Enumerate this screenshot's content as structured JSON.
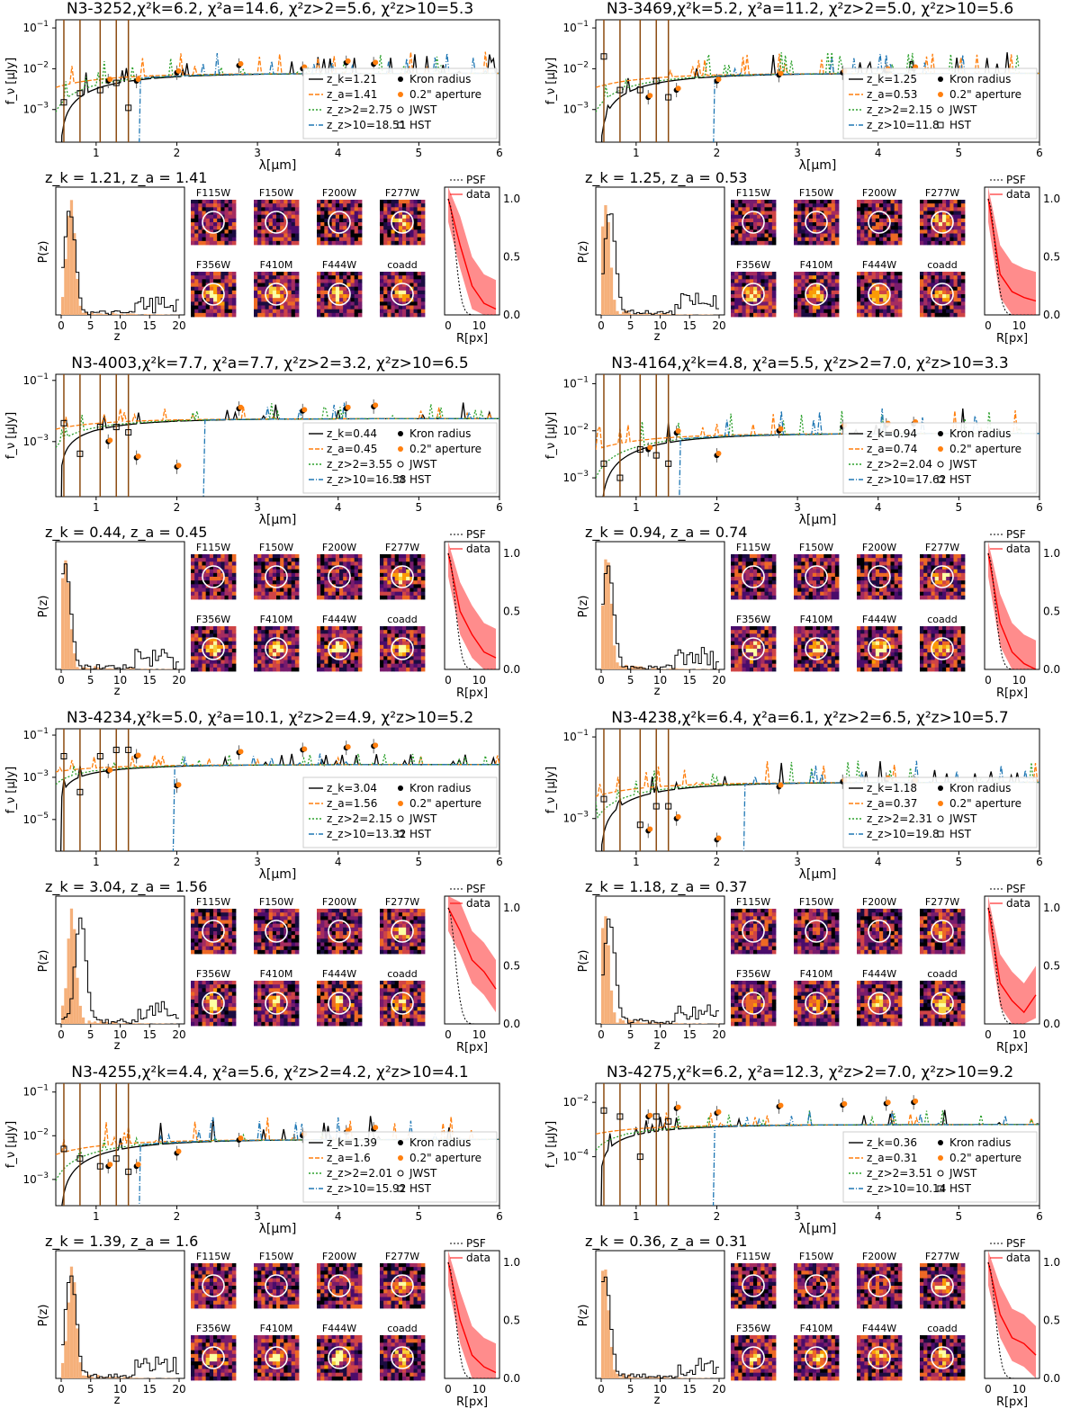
{
  "figure": {
    "axis_labels": {
      "sed_y": "f_ν [μJy]",
      "sed_x": "λ[μm]",
      "pz_y": "P(z)",
      "pz_x": "z",
      "radial_x": "R[px]"
    },
    "legend": {
      "kron": "Kron radius",
      "aperture": "0.2\" aperture",
      "jwst": "JWST",
      "hst": "HST",
      "psf": "PSF",
      "data": "data"
    },
    "filters": [
      "F115W",
      "F150W",
      "F200W",
      "F277W",
      "F356W",
      "F410M",
      "F444W",
      "coadd"
    ],
    "colors": {
      "zk": "#000000",
      "za": "#ff7f0e",
      "zgt2": "#2ca02c",
      "zgt10": "#1f77b4",
      "hst_err": "#8c4b10",
      "radial": "#ff0000",
      "pz_fill": "#f5b07a"
    }
  },
  "chart_data": [
    {
      "type": "line",
      "id": "N3-3252",
      "title": "N3-3252,χ²k=6.2, χ²a=14.6, χ²z>2=5.6, χ²z>10=5.3",
      "chi2": {
        "k": 6.2,
        "a": 14.6,
        "z_gt2": 5.6,
        "z_gt10": 5.3
      },
      "z_k": 1.21,
      "z_a": 1.41,
      "z_gt2": 2.75,
      "z_gt10": 18.51,
      "legend_values": [
        "z_k=1.21",
        "z_a=1.41",
        "z_z>2=2.75",
        "z_z>10=18.51"
      ],
      "zline": "z_k = 1.21, z_a = 1.41",
      "ylim_log10": [
        -3.8,
        -0.8
      ],
      "yticks_log10": [
        -3,
        -2,
        -1
      ],
      "xlim": [
        0.5,
        6
      ],
      "jwst_points": [
        [
          1.15,
          0.005
        ],
        [
          1.5,
          0.005
        ],
        [
          2.0,
          0.008
        ],
        [
          2.77,
          0.012
        ],
        [
          3.56,
          0.01
        ],
        [
          4.1,
          0.014
        ],
        [
          4.44,
          0.013
        ]
      ],
      "hst_points": [
        [
          0.6,
          0.0015
        ],
        [
          0.8,
          0.0025
        ],
        [
          1.05,
          0.003
        ],
        [
          1.25,
          0.0045
        ],
        [
          1.4,
          0.0011
        ]
      ],
      "radial_data": [
        1.0,
        0.6,
        0.25,
        0.1,
        0.05
      ]
    },
    {
      "type": "line",
      "id": "N3-3469",
      "title": "N3-3469,χ²k=5.2, χ²a=11.2, χ²z>2=5.0, χ²z>10=5.6",
      "chi2": {
        "k": 5.2,
        "a": 11.2,
        "z_gt2": 5.0,
        "z_gt10": 5.6
      },
      "z_k": 1.25,
      "z_a": 0.53,
      "z_gt2": 2.15,
      "z_gt10": 11.8,
      "legend_values": [
        "z_k=1.25",
        "z_a=0.53",
        "z_z>2=2.15",
        "z_z>10=11.8"
      ],
      "zline": "z_k = 1.25, z_a = 0.53",
      "ylim_log10": [
        -3.8,
        -0.8
      ],
      "yticks_log10": [
        -3,
        -2,
        -1
      ],
      "xlim": [
        0.5,
        6
      ],
      "jwst_points": [
        [
          1.15,
          0.002
        ],
        [
          1.5,
          0.003
        ],
        [
          2.0,
          0.005
        ],
        [
          2.77,
          0.007
        ],
        [
          3.56,
          0.008
        ],
        [
          4.1,
          0.009
        ],
        [
          4.44,
          0.01
        ]
      ],
      "hst_points": [
        [
          0.6,
          0.02
        ],
        [
          0.8,
          0.003
        ],
        [
          1.05,
          0.003
        ],
        [
          1.25,
          0.005
        ],
        [
          1.4,
          0.002
        ]
      ],
      "radial_data": [
        1.0,
        0.35,
        0.2,
        0.15,
        0.12
      ]
    },
    {
      "type": "line",
      "id": "N3-4003",
      "title": "N3-4003,χ²k=7.7, χ²a=7.7, χ²z>2=3.2, χ²z>10=6.5",
      "chi2": {
        "k": 7.7,
        "a": 7.7,
        "z_gt2": 3.2,
        "z_gt10": 6.5
      },
      "z_k": 0.44,
      "z_a": 0.45,
      "z_gt2": 3.55,
      "z_gt10": 16.58,
      "legend_values": [
        "z_k=0.44",
        "z_a=0.45",
        "z_z>2=3.55",
        "z_z>10=16.58"
      ],
      "zline": "z_k = 0.44, z_a = 0.45",
      "ylim_log10": [
        -4.8,
        -0.8
      ],
      "yticks_log10": [
        -3,
        -1
      ],
      "xlim": [
        0.5,
        6
      ],
      "jwst_points": [
        [
          1.15,
          0.001
        ],
        [
          1.5,
          0.0003
        ],
        [
          2.0,
          0.00015
        ],
        [
          2.77,
          0.012
        ],
        [
          3.56,
          0.01
        ],
        [
          4.1,
          0.012
        ],
        [
          4.44,
          0.014
        ]
      ],
      "hst_points": [
        [
          0.6,
          0.004
        ],
        [
          0.8,
          0.0004
        ],
        [
          1.05,
          0.003
        ],
        [
          1.25,
          0.003
        ],
        [
          1.4,
          0.002
        ]
      ],
      "radial_data": [
        1.0,
        0.5,
        0.3,
        0.15,
        0.1
      ]
    },
    {
      "type": "line",
      "id": "N3-4164",
      "title": "N3-4164,χ²k=4.8, χ²a=5.5, χ²z>2=7.0, χ²z>10=3.3",
      "chi2": {
        "k": 4.8,
        "a": 5.5,
        "z_gt2": 7.0,
        "z_gt10": 3.3
      },
      "z_k": 0.94,
      "z_a": 0.74,
      "z_gt2": 2.04,
      "z_gt10": 17.62,
      "legend_values": [
        "z_k=0.94",
        "z_a=0.74",
        "z_z>2=2.04",
        "z_z>10=17.62"
      ],
      "zline": "z_k = 0.94, z_a = 0.74",
      "ylim_log10": [
        -3.4,
        -0.8
      ],
      "yticks_log10": [
        -3,
        -2,
        -1
      ],
      "xlim": [
        0.5,
        6
      ],
      "jwst_points": [
        [
          1.15,
          0.004
        ],
        [
          1.5,
          0.009
        ],
        [
          2.0,
          0.003
        ],
        [
          2.77,
          0.01
        ],
        [
          3.56,
          0.012
        ],
        [
          4.1,
          0.013
        ],
        [
          4.44,
          0.014
        ]
      ],
      "hst_points": [
        [
          0.6,
          0.002
        ],
        [
          0.8,
          0.001
        ],
        [
          1.05,
          0.004
        ],
        [
          1.25,
          0.003
        ],
        [
          1.4,
          0.002
        ]
      ],
      "radial_data": [
        1.0,
        0.4,
        0.15,
        0.05,
        0.0
      ]
    },
    {
      "type": "line",
      "id": "N3-4234",
      "title": "N3-4234,χ²k=5.0, χ²a=10.1, χ²z>2=4.9, χ²z>10=5.2",
      "chi2": {
        "k": 5.0,
        "a": 10.1,
        "z_gt2": 4.9,
        "z_gt10": 5.2
      },
      "z_k": 3.04,
      "z_a": 1.56,
      "z_gt2": 2.15,
      "z_gt10": 13.32,
      "legend_values": [
        "z_k=3.04",
        "z_a=1.56",
        "z_z>2=2.15",
        "z_z>10=13.32"
      ],
      "zline": "z_k = 3.04, z_a = 1.56",
      "ylim_log10": [
        -6.5,
        -0.7
      ],
      "yticks_log10": [
        -5,
        -3,
        -1
      ],
      "xlim": [
        0.5,
        6
      ],
      "jwst_points": [
        [
          1.15,
          0.002
        ],
        [
          1.5,
          0.01
        ],
        [
          2.0,
          0.0004
        ],
        [
          2.77,
          0.015
        ],
        [
          3.56,
          0.02
        ],
        [
          4.1,
          0.025
        ],
        [
          4.44,
          0.03
        ]
      ],
      "hst_points": [
        [
          0.6,
          0.01
        ],
        [
          0.8,
          0.0002
        ],
        [
          1.05,
          0.01
        ],
        [
          1.25,
          0.02
        ],
        [
          1.4,
          0.02
        ]
      ],
      "radial_data": [
        1.0,
        0.8,
        0.55,
        0.45,
        0.3
      ]
    },
    {
      "type": "line",
      "id": "N3-4238",
      "title": "N3-4238,χ²k=6.4, χ²a=6.1, χ²z>2=6.5, χ²z>10=5.7",
      "chi2": {
        "k": 6.4,
        "a": 6.1,
        "z_gt2": 6.5,
        "z_gt10": 5.7
      },
      "z_k": 1.18,
      "z_a": 0.37,
      "z_gt2": 2.31,
      "z_gt10": 19.8,
      "legend_values": [
        "z_k=1.18",
        "z_a=0.37",
        "z_z>2=2.31",
        "z_z>10=19.8"
      ],
      "zline": "z_k = 1.18, z_a = 0.37",
      "ylim_log10": [
        -3.8,
        -0.8
      ],
      "yticks_log10": [
        -3,
        -1
      ],
      "xlim": [
        0.5,
        6
      ],
      "jwst_points": [
        [
          1.15,
          0.0005
        ],
        [
          1.5,
          0.001
        ],
        [
          2.0,
          0.0003
        ],
        [
          2.77,
          0.006
        ],
        [
          3.56,
          0.008
        ],
        [
          4.1,
          0.009
        ],
        [
          4.44,
          0.008
        ]
      ],
      "hst_points": [
        [
          0.6,
          0.003
        ],
        [
          0.8,
          0.0001
        ],
        [
          1.05,
          0.0007
        ],
        [
          1.25,
          0.002
        ],
        [
          1.4,
          0.002
        ]
      ],
      "radial_data": [
        1.0,
        0.35,
        0.2,
        0.1,
        0.25
      ]
    },
    {
      "type": "line",
      "id": "N3-4255",
      "title": "N3-4255,χ²k=4.4, χ²a=5.6, χ²z>2=4.2, χ²z>10=4.1",
      "chi2": {
        "k": 4.4,
        "a": 5.6,
        "z_gt2": 4.2,
        "z_gt10": 4.1
      },
      "z_k": 1.39,
      "z_a": 1.6,
      "z_gt2": 2.01,
      "z_gt10": 15.92,
      "legend_values": [
        "z_k=1.39",
        "z_a=1.6",
        "z_z>2=2.01",
        "z_z>10=15.92"
      ],
      "zline": "z_k = 1.39, z_a = 1.6",
      "ylim_log10": [
        -3.6,
        -0.8
      ],
      "yticks_log10": [
        -3,
        -2,
        -1
      ],
      "xlim": [
        0.5,
        6
      ],
      "jwst_points": [
        [
          1.15,
          0.002
        ],
        [
          1.5,
          0.002
        ],
        [
          2.0,
          0.004
        ],
        [
          2.77,
          0.008
        ],
        [
          3.56,
          0.01
        ],
        [
          4.1,
          0.012
        ],
        [
          4.44,
          0.014
        ]
      ],
      "hst_points": [
        [
          0.6,
          0.005
        ],
        [
          0.8,
          0.003
        ],
        [
          1.05,
          0.002
        ],
        [
          1.25,
          0.003
        ],
        [
          1.4,
          0.0015
        ]
      ],
      "radial_data": [
        1.0,
        0.5,
        0.2,
        0.1,
        0.05
      ]
    },
    {
      "type": "line",
      "id": "N3-4275",
      "title": "N3-4275,χ²k=6.2, χ²a=12.3, χ²z>2=7.0, χ²z>10=9.2",
      "chi2": {
        "k": 6.2,
        "a": 12.3,
        "z_gt2": 7.0,
        "z_gt10": 9.2
      },
      "z_k": 0.36,
      "z_a": 0.31,
      "z_gt2": 3.51,
      "z_gt10": 10.14,
      "legend_values": [
        "z_k=0.36",
        "z_a=0.31",
        "z_z>2=3.51",
        "z_z>10=10.14"
      ],
      "zline": "z_k = 0.36, z_a = 0.31",
      "ylim_log10": [
        -5.8,
        -1.3
      ],
      "yticks_log10": [
        -4,
        -2
      ],
      "xlim": [
        0.5,
        6
      ],
      "jwst_points": [
        [
          1.15,
          0.003
        ],
        [
          1.5,
          0.006
        ],
        [
          2.0,
          0.004
        ],
        [
          2.77,
          0.007
        ],
        [
          3.56,
          0.008
        ],
        [
          4.1,
          0.009
        ],
        [
          4.44,
          0.01
        ]
      ],
      "hst_points": [
        [
          0.6,
          0.005
        ],
        [
          0.8,
          0.003
        ],
        [
          1.05,
          0.0001
        ],
        [
          1.25,
          0.003
        ],
        [
          1.4,
          0.002
        ]
      ],
      "radial_data": [
        1.0,
        0.55,
        0.35,
        0.3,
        0.2
      ]
    }
  ]
}
